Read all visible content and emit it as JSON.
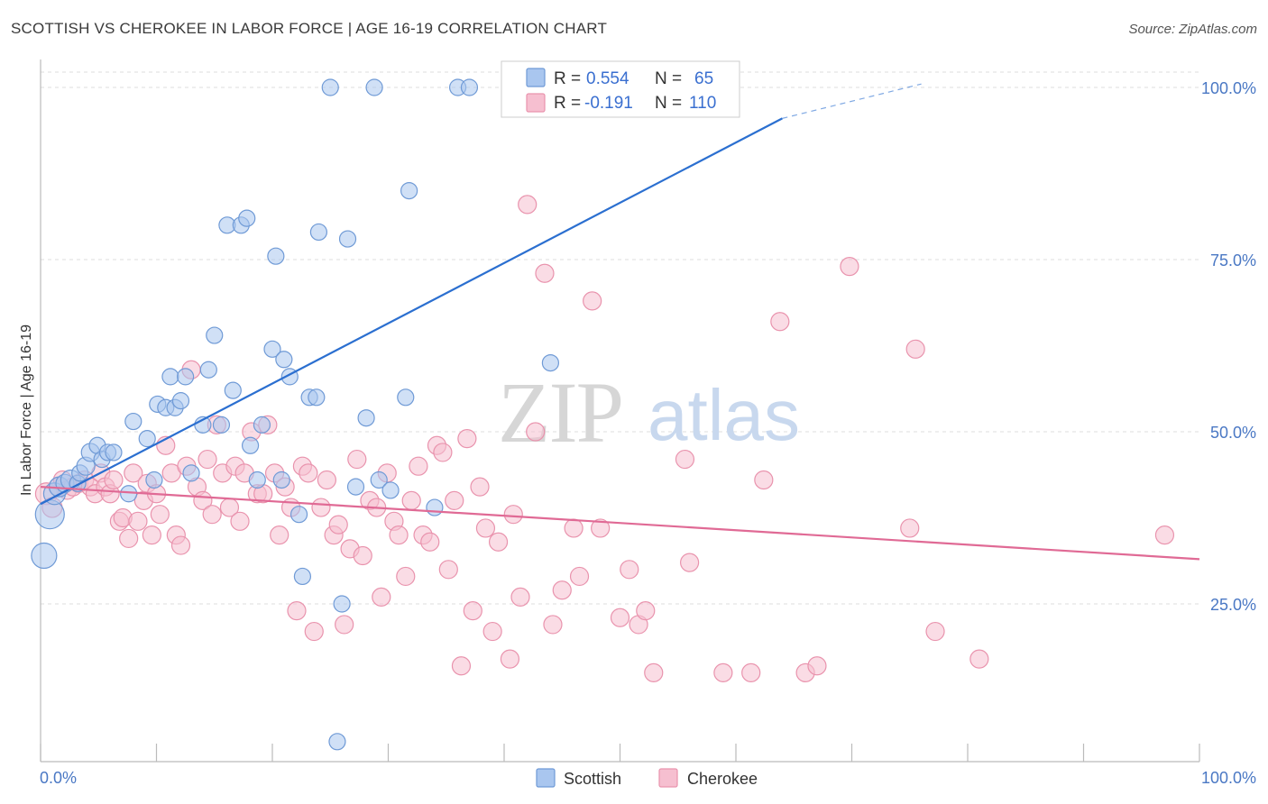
{
  "title": "SCOTTISH VS CHEROKEE IN LABOR FORCE | AGE 16-19 CORRELATION CHART",
  "source": "Source: ZipAtlas.com",
  "watermark": {
    "zip": "ZIP",
    "atlas": "atlas"
  },
  "colors": {
    "scottish_fill": "#a9c6ef",
    "scottish_stroke": "#6f9ad6",
    "scottish_line": "#2b6fd0",
    "cherokee_fill": "#f6bfd0",
    "cherokee_stroke": "#e993ad",
    "cherokee_line": "#e06a95",
    "tick_text": "#4a78c4",
    "grid": "#dddddd"
  },
  "legend": {
    "rows": [
      {
        "r_label": "R =",
        "r_value": "0.554",
        "n_label": "N =",
        "n_value": "65",
        "series": "Scottish"
      },
      {
        "r_label": "R =",
        "r_value": "-0.191",
        "n_label": "N =",
        "n_value": "110",
        "series": "Cherokee"
      }
    ]
  },
  "bottom_legend": [
    "Scottish",
    "Cherokee"
  ],
  "chart_data": {
    "type": "scatter",
    "title": "SCOTTISH VS CHEROKEE IN LABOR FORCE | AGE 16-19 CORRELATION CHART",
    "xlabel": "",
    "ylabel": "In Labor Force | Age 16-19",
    "xlim": [
      0,
      100
    ],
    "ylim": [
      0,
      102
    ],
    "x_tick_labels": [
      "0.0%",
      "100.0%"
    ],
    "y_tick_labels": [
      "25.0%",
      "50.0%",
      "75.0%",
      "100.0%"
    ],
    "y_ticks": [
      25,
      50,
      75,
      100
    ],
    "grid": true,
    "legend_position": "top-center",
    "series": [
      {
        "name": "Scottish",
        "r": 0.554,
        "n": 65,
        "trend": {
          "x0": 0,
          "y0": 39.5,
          "x1": 64,
          "y1": 95.5,
          "dash_to_x": 64,
          "dash_end_x": 76,
          "dash_end_y": 100.5
        },
        "points": [
          [
            0.3,
            32,
            14
          ],
          [
            0.8,
            38,
            16
          ],
          [
            1.2,
            41,
            12
          ],
          [
            1.6,
            42,
            11
          ],
          [
            2.1,
            42.5,
            10
          ],
          [
            2.6,
            43,
            11
          ],
          [
            3.2,
            42.5,
            9
          ],
          [
            3.4,
            44,
            9
          ],
          [
            3.9,
            45,
            10
          ],
          [
            4.3,
            47,
            10
          ],
          [
            4.9,
            48,
            9
          ],
          [
            5.3,
            46,
            9
          ],
          [
            5.8,
            47,
            9
          ],
          [
            6.3,
            47,
            9
          ],
          [
            8,
            51.5,
            9
          ],
          [
            7.6,
            41,
            9
          ],
          [
            9.2,
            49,
            9
          ],
          [
            9.8,
            43,
            9
          ],
          [
            10.1,
            54,
            9
          ],
          [
            10.8,
            53.5,
            9
          ],
          [
            11.2,
            58,
            9
          ],
          [
            11.6,
            53.5,
            9
          ],
          [
            12.1,
            54.5,
            9
          ],
          [
            12.5,
            58,
            9
          ],
          [
            13,
            44,
            9
          ],
          [
            14,
            51,
            9
          ],
          [
            14.5,
            59,
            9
          ],
          [
            15,
            64,
            9
          ],
          [
            15.6,
            51,
            9
          ],
          [
            16.1,
            80,
            9
          ],
          [
            16.6,
            56,
            9
          ],
          [
            17.3,
            80,
            9
          ],
          [
            17.8,
            81,
            9
          ],
          [
            18.1,
            48,
            9
          ],
          [
            18.7,
            43,
            9
          ],
          [
            19.1,
            51,
            9
          ],
          [
            20,
            62,
            9
          ],
          [
            20.3,
            75.5,
            9
          ],
          [
            20.8,
            43,
            9
          ],
          [
            21,
            60.5,
            9
          ],
          [
            21.5,
            58,
            9
          ],
          [
            22.3,
            38,
            9
          ],
          [
            22.6,
            29,
            9
          ],
          [
            23.2,
            55,
            9
          ],
          [
            23.8,
            55,
            9
          ],
          [
            24,
            79,
            9
          ],
          [
            25,
            100,
            9
          ],
          [
            25.6,
            5,
            9
          ],
          [
            26,
            25,
            9
          ],
          [
            26.5,
            78,
            9
          ],
          [
            27.2,
            42,
            9
          ],
          [
            28.8,
            100,
            9
          ],
          [
            29.2,
            43,
            9
          ],
          [
            28.1,
            52,
            9
          ],
          [
            30.2,
            41.5,
            9
          ],
          [
            31.5,
            55,
            9
          ],
          [
            31.8,
            85,
            9
          ],
          [
            34,
            39,
            9
          ],
          [
            36,
            100,
            9
          ],
          [
            37,
            100,
            9
          ],
          [
            40.5,
            100,
            9
          ],
          [
            44,
            60,
            9
          ]
        ]
      },
      {
        "name": "Cherokee",
        "r": -0.191,
        "n": 110,
        "trend": {
          "x0": 0,
          "y0": 42,
          "x1": 100,
          "y1": 31.5
        },
        "points": [
          [
            0.5,
            41,
            12
          ],
          [
            1,
            39,
            11
          ],
          [
            1.5,
            42,
            10
          ],
          [
            1.9,
            43,
            10
          ],
          [
            2.3,
            41.5,
            10
          ],
          [
            2.8,
            42,
            10
          ],
          [
            3.3,
            42.5,
            10
          ],
          [
            3.8,
            43,
            10
          ],
          [
            4.3,
            42,
            10
          ],
          [
            4.7,
            41,
            10
          ],
          [
            5.2,
            44,
            10
          ],
          [
            5.6,
            42,
            10
          ],
          [
            6,
            41,
            10
          ],
          [
            6.3,
            43,
            10
          ],
          [
            6.8,
            37,
            10
          ],
          [
            7.1,
            37.5,
            10
          ],
          [
            7.6,
            34.5,
            10
          ],
          [
            8,
            44,
            10
          ],
          [
            8.4,
            37,
            10
          ],
          [
            8.9,
            40,
            10
          ],
          [
            9.2,
            42.5,
            10
          ],
          [
            9.6,
            35,
            10
          ],
          [
            10,
            41,
            10
          ],
          [
            10.3,
            38,
            10
          ],
          [
            10.8,
            48,
            10
          ],
          [
            11.3,
            44,
            10
          ],
          [
            11.7,
            35,
            10
          ],
          [
            12.1,
            33.5,
            10
          ],
          [
            12.6,
            45,
            10
          ],
          [
            13,
            59,
            10
          ],
          [
            13.5,
            42,
            10
          ],
          [
            14,
            40,
            10
          ],
          [
            14.4,
            46,
            10
          ],
          [
            14.8,
            38,
            10
          ],
          [
            15.2,
            51,
            10
          ],
          [
            15.7,
            44,
            10
          ],
          [
            16.3,
            39,
            10
          ],
          [
            16.8,
            45,
            10
          ],
          [
            17.2,
            37,
            10
          ],
          [
            17.6,
            44,
            10
          ],
          [
            18.2,
            50,
            10
          ],
          [
            18.7,
            41,
            10
          ],
          [
            19.2,
            41,
            10
          ],
          [
            19.6,
            51,
            10
          ],
          [
            20.2,
            44,
            10
          ],
          [
            20.6,
            35,
            10
          ],
          [
            21.1,
            42,
            10
          ],
          [
            21.6,
            39,
            10
          ],
          [
            22.1,
            24,
            10
          ],
          [
            22.6,
            45,
            10
          ],
          [
            23.1,
            44,
            10
          ],
          [
            23.6,
            21,
            10
          ],
          [
            24.2,
            39,
            10
          ],
          [
            24.7,
            43,
            10
          ],
          [
            25.3,
            35,
            10
          ],
          [
            25.7,
            36.5,
            10
          ],
          [
            26.2,
            22,
            10
          ],
          [
            26.7,
            33,
            10
          ],
          [
            27.3,
            46,
            10
          ],
          [
            27.8,
            32,
            10
          ],
          [
            28.4,
            40,
            10
          ],
          [
            29,
            39,
            10
          ],
          [
            29.4,
            26,
            10
          ],
          [
            29.9,
            44,
            10
          ],
          [
            30.5,
            37,
            10
          ],
          [
            30.9,
            35,
            10
          ],
          [
            31.5,
            29,
            10
          ],
          [
            32,
            40,
            10
          ],
          [
            32.6,
            45,
            10
          ],
          [
            33,
            35,
            10
          ],
          [
            33.6,
            34,
            10
          ],
          [
            34.2,
            48,
            10
          ],
          [
            34.7,
            47,
            10
          ],
          [
            35.2,
            30,
            10
          ],
          [
            35.7,
            40,
            10
          ],
          [
            36.3,
            16,
            10
          ],
          [
            36.8,
            49,
            10
          ],
          [
            37.3,
            24,
            10
          ],
          [
            37.9,
            42,
            10
          ],
          [
            38.4,
            36,
            10
          ],
          [
            39,
            21,
            10
          ],
          [
            39.5,
            34,
            10
          ],
          [
            40.5,
            17,
            10
          ],
          [
            40.8,
            38,
            10
          ],
          [
            41.4,
            26,
            10
          ],
          [
            42,
            83,
            10
          ],
          [
            42.7,
            50,
            10
          ],
          [
            43.5,
            73,
            10
          ],
          [
            44.2,
            22,
            10
          ],
          [
            45,
            27,
            10
          ],
          [
            46,
            36,
            10
          ],
          [
            46.5,
            29,
            10
          ],
          [
            47.6,
            69,
            10
          ],
          [
            48.3,
            36,
            10
          ],
          [
            50,
            23,
            10
          ],
          [
            50.8,
            30,
            10
          ],
          [
            51.6,
            22,
            10
          ],
          [
            52.2,
            24,
            10
          ],
          [
            52.9,
            15,
            10
          ],
          [
            55.6,
            46,
            10
          ],
          [
            56,
            31,
            10
          ],
          [
            58.9,
            15,
            10
          ],
          [
            61.3,
            15,
            10
          ],
          [
            62.4,
            43,
            10
          ],
          [
            63.8,
            66,
            10
          ],
          [
            66,
            15,
            10
          ],
          [
            67,
            16,
            10
          ],
          [
            69.8,
            74,
            10
          ],
          [
            75,
            36,
            10
          ],
          [
            75.5,
            62,
            10
          ],
          [
            77.2,
            21,
            10
          ],
          [
            81,
            17,
            10
          ],
          [
            97,
            35,
            10
          ]
        ]
      }
    ]
  }
}
